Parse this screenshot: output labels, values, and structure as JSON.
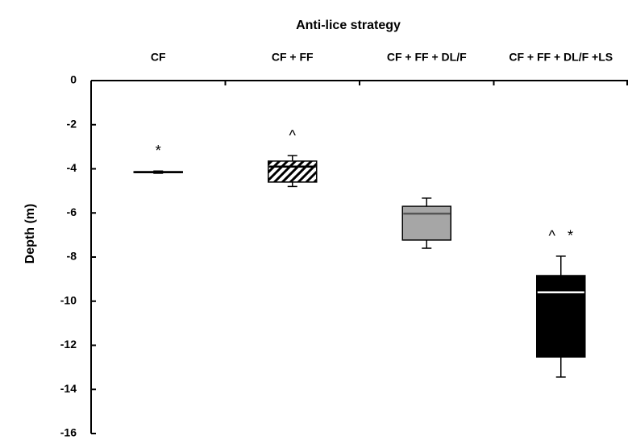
{
  "chart_data": {
    "type": "box",
    "title": "Anti-lice strategy",
    "y_label": "Depth (m)",
    "ylim": [
      0,
      -16
    ],
    "yticks": [
      0,
      -2,
      -4,
      -6,
      -8,
      -10,
      -12,
      -14,
      -16
    ],
    "boxes": [
      {
        "category": "CF",
        "min": -4.2,
        "q1": -4.17,
        "median": -4.15,
        "q3": -4.13,
        "max": -4.1,
        "fill": "#000000",
        "median_color": "#000000",
        "annotation": "*"
      },
      {
        "category": "CF + FF",
        "min": -4.8,
        "q1": -4.6,
        "median": -3.9,
        "q3": -3.65,
        "max": -3.4,
        "fill": "hatch",
        "median_color": "#000000",
        "annotation": "^"
      },
      {
        "category": "CF + FF + DL/F",
        "min": -7.6,
        "q1": -7.23,
        "median": -6.03,
        "q3": -5.7,
        "max": -5.33,
        "fill": "#a6a6a6",
        "median_color": "#555555"
      },
      {
        "category": "CF + FF + DL/F +LS",
        "min": -13.44,
        "q1": -12.53,
        "median": -9.6,
        "q3": -8.84,
        "max": -7.96,
        "fill": "#000000",
        "median_color": "#ffffff",
        "annotation": "^   *"
      }
    ]
  }
}
